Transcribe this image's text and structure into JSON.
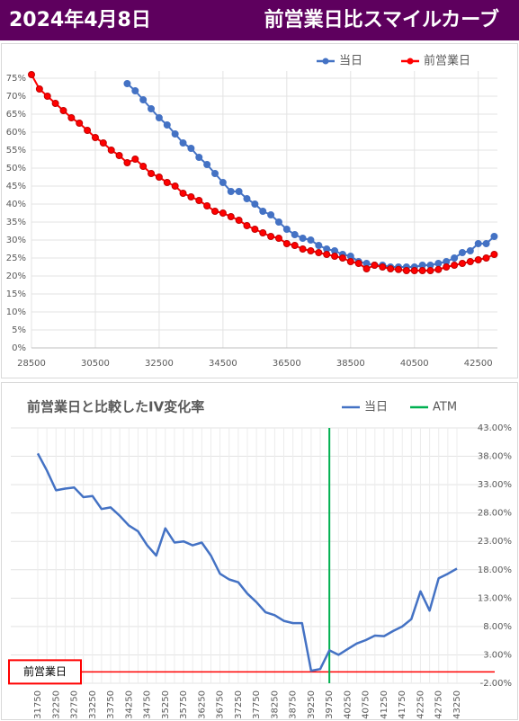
{
  "header": {
    "date": "2024年4月8日",
    "title": "前営業日比スマイルカーブ"
  },
  "chart_data": [
    {
      "type": "line",
      "x": [
        28500,
        28750,
        29000,
        29250,
        29500,
        29750,
        30000,
        30250,
        30500,
        30750,
        31000,
        31250,
        31500,
        31750,
        32000,
        32250,
        32500,
        32750,
        33000,
        33250,
        33500,
        33750,
        34000,
        34250,
        34500,
        34750,
        35000,
        35250,
        35500,
        35750,
        36000,
        36250,
        36500,
        36750,
        37000,
        37250,
        37500,
        37750,
        38000,
        38250,
        38500,
        38750,
        39000,
        39250,
        39500,
        39750,
        40000,
        40250,
        40500,
        40750,
        41000,
        41250,
        41500,
        41750,
        42000,
        42250,
        42500,
        42750,
        43000
      ],
      "series": [
        {
          "name": "当日",
          "color": "#4472c4",
          "values": [
            null,
            null,
            null,
            null,
            null,
            null,
            null,
            null,
            null,
            null,
            null,
            null,
            73.5,
            71.5,
            69,
            66.5,
            64,
            62,
            59.5,
            57,
            55.5,
            53,
            51,
            48.5,
            46,
            43.5,
            43.5,
            41.5,
            40,
            38,
            37,
            35,
            33,
            31.5,
            30.5,
            30,
            28.5,
            27.5,
            27,
            26,
            25.5,
            24,
            23.5,
            23,
            23,
            22.5,
            22.5,
            22.5,
            22.5,
            23,
            23,
            23.5,
            24,
            25,
            26.5,
            27,
            29,
            29,
            31
          ]
        },
        {
          "name": "前営業日",
          "color": "#ff0000",
          "values": [
            76,
            72,
            70,
            68,
            66,
            64,
            62.5,
            60.5,
            58.5,
            57,
            55,
            53.5,
            51.5,
            52.5,
            50.5,
            48.5,
            47.5,
            46,
            45,
            43,
            42,
            41,
            39.5,
            38,
            37.5,
            36.5,
            35.5,
            34,
            33,
            32,
            31,
            30.5,
            29,
            28.5,
            27.5,
            27,
            26.5,
            26,
            25.5,
            25,
            24,
            23.5,
            22,
            23,
            22.5,
            22,
            21.8,
            21.5,
            21.5,
            21.5,
            21.5,
            21.8,
            22.5,
            23,
            23.5,
            24,
            24.5,
            25,
            26
          ]
        }
      ],
      "xlim": [
        28500,
        43100
      ],
      "xticks": [
        28500,
        30500,
        32500,
        34500,
        36500,
        38500,
        40500,
        42500
      ],
      "ylim": [
        0,
        77
      ],
      "yticks": [
        {
          "value": 0,
          "label": "0%"
        },
        {
          "value": 5,
          "label": "5%"
        },
        {
          "value": 10,
          "label": "10%"
        },
        {
          "value": 15,
          "label": "15%"
        },
        {
          "value": 20,
          "label": "20%"
        },
        {
          "value": 25,
          "label": "25%"
        },
        {
          "value": 30,
          "label": "30%"
        },
        {
          "value": 35,
          "label": "35%"
        },
        {
          "value": 40,
          "label": "40%"
        },
        {
          "value": 45,
          "label": "45%"
        },
        {
          "value": 50,
          "label": "50%"
        },
        {
          "value": 55,
          "label": "55%"
        },
        {
          "value": 60,
          "label": "60%"
        },
        {
          "value": 65,
          "label": "65%"
        },
        {
          "value": 70,
          "label": "70%"
        },
        {
          "value": 75,
          "label": "75%"
        }
      ],
      "grid": true,
      "legend": "top-right"
    },
    {
      "type": "line",
      "title": "前営業日と比較したIV変化率",
      "categories": [
        "31750",
        null,
        "32250",
        null,
        "32750",
        null,
        "33250",
        null,
        "33750",
        null,
        "34250",
        null,
        "34750",
        null,
        "35250",
        null,
        "35750",
        null,
        "36250",
        null,
        "36750",
        null,
        "37250",
        null,
        "37750",
        null,
        "38250",
        null,
        "38750",
        null,
        "39250",
        null,
        "39750",
        null,
        "40250",
        null,
        "40750",
        null,
        "41250",
        null,
        "41750",
        null,
        "42250",
        null,
        "42750",
        null,
        "43250"
      ],
      "series": [
        {
          "name": "当日",
          "color": "#4472c4",
          "values": [
            38.5,
            35.5,
            32,
            32.3,
            32.5,
            30.8,
            31,
            28.7,
            29,
            27.5,
            25.8,
            24.8,
            22.3,
            20.5,
            25.3,
            22.8,
            23,
            22.3,
            22.8,
            20.5,
            17.3,
            16.3,
            15.8,
            13.8,
            12.3,
            10.5,
            10,
            9,
            8.6,
            8.6,
            0.2,
            0.5,
            3.8,
            3,
            4,
            5,
            5.6,
            6.4,
            6.3,
            7.2,
            8,
            9.3,
            14.2,
            10.8,
            16.5,
            17.3,
            18.2
          ]
        }
      ],
      "vlines": [
        {
          "name": "ATM",
          "color": "#00b050",
          "x": 39750
        }
      ],
      "hlines": [
        {
          "label": "前営業日",
          "color": "#ff0000",
          "y": 0
        }
      ],
      "ylim": [
        -2,
        43
      ],
      "yticks": [
        {
          "value": -2,
          "label": "-2.00%"
        },
        {
          "value": 3,
          "label": "3.00%"
        },
        {
          "value": 8,
          "label": "8.00%"
        },
        {
          "value": 13,
          "label": "13.00%"
        },
        {
          "value": 18,
          "label": "18.00%"
        },
        {
          "value": 23,
          "label": "23.00%"
        },
        {
          "value": 28,
          "label": "28.00%"
        },
        {
          "value": 33,
          "label": "33.00%"
        },
        {
          "value": 38,
          "label": "38.00%"
        },
        {
          "value": 43,
          "label": "43.00%"
        }
      ],
      "grid": true,
      "legend": "top-right"
    }
  ]
}
